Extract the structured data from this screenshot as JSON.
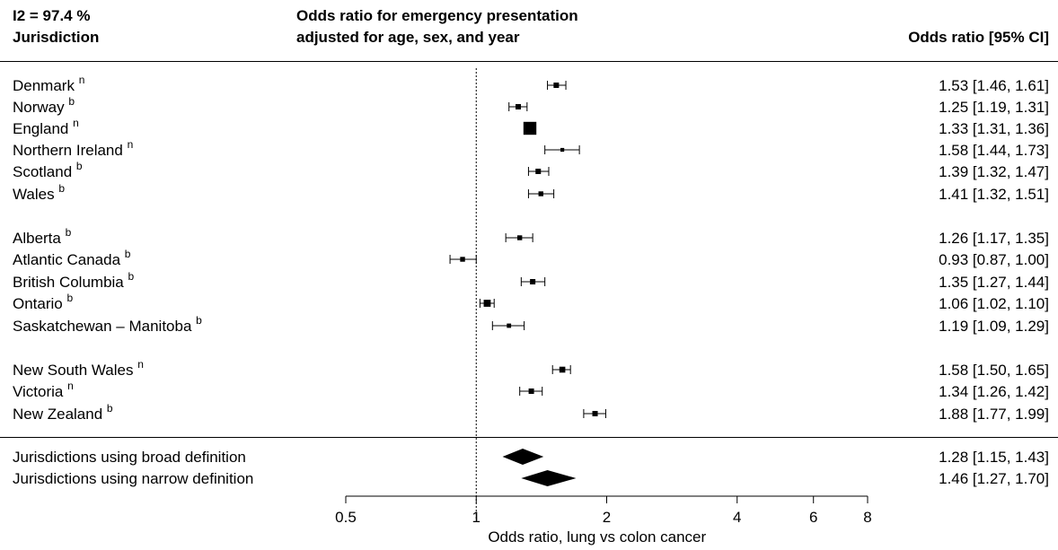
{
  "header": {
    "i2": "I2 = 97.4 %",
    "jurisdiction": "Jurisdiction",
    "title_line1": "Odds ratio for emergency presentation",
    "title_line2": "adjusted for age, sex, and year",
    "ci_header": "Odds ratio [95% CI]"
  },
  "chart_data": {
    "type": "forest",
    "xlabel": "Odds ratio, lung vs colon cancer",
    "xscale": "log",
    "xlim": [
      0.5,
      8
    ],
    "reference_line": 1,
    "ticks": [
      {
        "value": 0.5,
        "label": "0.5"
      },
      {
        "value": 1,
        "label": "1"
      },
      {
        "value": 2,
        "label": "2"
      },
      {
        "value": 4,
        "label": "4"
      },
      {
        "value": 6,
        "label": "6"
      },
      {
        "value": 8,
        "label": "8"
      }
    ],
    "studies": [
      {
        "name": "Denmark",
        "sup": "n",
        "or": 1.53,
        "lo": 1.46,
        "hi": 1.61,
        "ci_text": "1.53 [1.46, 1.61]",
        "weight": 1.0
      },
      {
        "name": "Norway",
        "sup": "b",
        "or": 1.25,
        "lo": 1.19,
        "hi": 1.31,
        "ci_text": "1.25 [1.19, 1.31]",
        "weight": 1.0
      },
      {
        "name": "England",
        "sup": "n",
        "or": 1.33,
        "lo": 1.31,
        "hi": 1.36,
        "ci_text": "1.33 [1.31, 1.36]",
        "weight": 2.4
      },
      {
        "name": "Northern Ireland",
        "sup": "n",
        "or": 1.58,
        "lo": 1.44,
        "hi": 1.73,
        "ci_text": "1.58 [1.44, 1.73]",
        "weight": 0.7
      },
      {
        "name": "Scotland",
        "sup": "b",
        "or": 1.39,
        "lo": 1.32,
        "hi": 1.47,
        "ci_text": "1.39 [1.32, 1.47]",
        "weight": 1.0
      },
      {
        "name": "Wales",
        "sup": "b",
        "or": 1.41,
        "lo": 1.32,
        "hi": 1.51,
        "ci_text": "1.41 [1.32, 1.51]",
        "weight": 0.9
      },
      {
        "name": "Alberta",
        "sup": "b",
        "or": 1.26,
        "lo": 1.17,
        "hi": 1.35,
        "ci_text": "1.26 [1.17, 1.35]",
        "weight": 0.9
      },
      {
        "name": "Atlantic Canada",
        "sup": "b",
        "or": 0.93,
        "lo": 0.87,
        "hi": 1.0,
        "ci_text": "0.93 [0.87, 1.00]",
        "weight": 0.9
      },
      {
        "name": "British Columbia",
        "sup": "b",
        "or": 1.35,
        "lo": 1.27,
        "hi": 1.44,
        "ci_text": "1.35 [1.27, 1.44]",
        "weight": 1.0
      },
      {
        "name": "Ontario",
        "sup": "b",
        "or": 1.06,
        "lo": 1.02,
        "hi": 1.1,
        "ci_text": "1.06 [1.02, 1.10]",
        "weight": 1.3
      },
      {
        "name": "Saskatchewan – Manitoba",
        "sup": "b",
        "or": 1.19,
        "lo": 1.09,
        "hi": 1.29,
        "ci_text": "1.19 [1.09, 1.29]",
        "weight": 0.8
      },
      {
        "name": "New South Wales",
        "sup": "n",
        "or": 1.58,
        "lo": 1.5,
        "hi": 1.65,
        "ci_text": "1.58 [1.50, 1.65]",
        "weight": 1.1
      },
      {
        "name": "Victoria",
        "sup": "n",
        "or": 1.34,
        "lo": 1.26,
        "hi": 1.42,
        "ci_text": "1.34 [1.26, 1.42]",
        "weight": 1.0
      },
      {
        "name": "New Zealand",
        "sup": "b",
        "or": 1.88,
        "lo": 1.77,
        "hi": 1.99,
        "ci_text": "1.88 [1.77, 1.99]",
        "weight": 1.0
      }
    ],
    "summaries": [
      {
        "name": "Jurisdictions using broad definition",
        "or": 1.28,
        "lo": 1.15,
        "hi": 1.43,
        "ci_text": "1.28 [1.15, 1.43]"
      },
      {
        "name": "Jurisdictions using narrow definition",
        "or": 1.46,
        "lo": 1.27,
        "hi": 1.7,
        "ci_text": "1.46 [1.27, 1.70]"
      }
    ]
  }
}
